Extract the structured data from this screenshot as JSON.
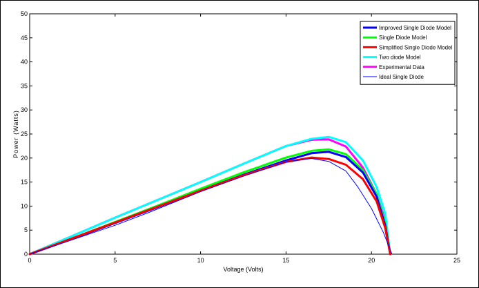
{
  "chart_data": {
    "type": "line",
    "xlabel": "Voltage (Volts)",
    "ylabel": "Power (Watts)",
    "xlim": [
      0,
      25
    ],
    "ylim": [
      0,
      50
    ],
    "xticks": [
      0,
      5,
      10,
      15,
      20,
      25
    ],
    "yticks": [
      0,
      5,
      10,
      15,
      20,
      25,
      30,
      35,
      40,
      45,
      50
    ],
    "grid": false,
    "legend_position": "top-right",
    "series": [
      {
        "name": "Improved Single Diode Model",
        "color": "#0000ff",
        "line_width": "thick",
        "points": [
          [
            0,
            0
          ],
          [
            2.5,
            3.2
          ],
          [
            5,
            6.5
          ],
          [
            7.5,
            9.8
          ],
          [
            10,
            13.2
          ],
          [
            12.5,
            16.5
          ],
          [
            15,
            19.5
          ],
          [
            16.5,
            21
          ],
          [
            17.5,
            21.3
          ],
          [
            18.5,
            20.2
          ],
          [
            19.5,
            17
          ],
          [
            20.3,
            12
          ],
          [
            20.8,
            6
          ],
          [
            21.1,
            0
          ]
        ]
      },
      {
        "name": "Single Diode Model",
        "color": "#00ff00",
        "line_width": "thick",
        "points": [
          [
            0,
            0
          ],
          [
            2.5,
            3.3
          ],
          [
            5,
            6.7
          ],
          [
            7.5,
            10.1
          ],
          [
            10,
            13.6
          ],
          [
            12.5,
            17
          ],
          [
            15,
            20.1
          ],
          [
            16.5,
            21.5
          ],
          [
            17.5,
            21.8
          ],
          [
            18.5,
            20.8
          ],
          [
            19.5,
            17.5
          ],
          [
            20.3,
            12.5
          ],
          [
            20.8,
            6.5
          ],
          [
            21.1,
            0
          ]
        ]
      },
      {
        "name": "Simplified Single Diode Model",
        "color": "#ff0000",
        "line_width": "thick",
        "points": [
          [
            0,
            0
          ],
          [
            2.5,
            3.3
          ],
          [
            5,
            6.6
          ],
          [
            7.5,
            9.9
          ],
          [
            10,
            13.2
          ],
          [
            12.5,
            16.4
          ],
          [
            15,
            19.2
          ],
          [
            16.5,
            20.1
          ],
          [
            17.5,
            19.8
          ],
          [
            18.5,
            18.6
          ],
          [
            19.5,
            15.6
          ],
          [
            20.3,
            11
          ],
          [
            20.8,
            5.5
          ],
          [
            21.1,
            0
          ]
        ]
      },
      {
        "name": "Two diode Model",
        "color": "#00ffff",
        "line_width": "thick",
        "points": [
          [
            0,
            0
          ],
          [
            2.5,
            3.8
          ],
          [
            5,
            7.6
          ],
          [
            7.5,
            11.3
          ],
          [
            10,
            15
          ],
          [
            12.5,
            18.8
          ],
          [
            15,
            22.5
          ],
          [
            16.5,
            24
          ],
          [
            17.5,
            24.4
          ],
          [
            18.5,
            23.3
          ],
          [
            19.5,
            19.5
          ],
          [
            20.3,
            14
          ],
          [
            20.8,
            8.5
          ],
          [
            21.1,
            0
          ]
        ]
      },
      {
        "name": "Experimental Data",
        "color": "#ff00ff",
        "line_width": "thick",
        "points": [
          [
            0,
            0
          ],
          [
            2.5,
            3.8
          ],
          [
            5,
            7.6
          ],
          [
            7.5,
            11.3
          ],
          [
            10,
            15
          ],
          [
            12.5,
            18.8
          ],
          [
            15,
            22.5
          ],
          [
            16.5,
            23.8
          ],
          [
            17.5,
            23.9
          ],
          [
            18.5,
            22.4
          ],
          [
            19.5,
            18
          ],
          [
            20.3,
            12.5
          ],
          [
            20.8,
            7
          ],
          [
            21.1,
            0
          ]
        ]
      },
      {
        "name": "Ideal Single Diode",
        "color": "#0000ff",
        "line_width": "thin",
        "points": [
          [
            0,
            0
          ],
          [
            2.5,
            3
          ],
          [
            5,
            6
          ],
          [
            7,
            8.7
          ],
          [
            10,
            13
          ],
          [
            12.5,
            16.2
          ],
          [
            15,
            19.2
          ],
          [
            16.5,
            19.9
          ],
          [
            17.5,
            19.3
          ],
          [
            18.5,
            17.3
          ],
          [
            19.2,
            14
          ],
          [
            20,
            9.5
          ],
          [
            20.7,
            4.5
          ],
          [
            21.2,
            0
          ]
        ]
      }
    ]
  }
}
